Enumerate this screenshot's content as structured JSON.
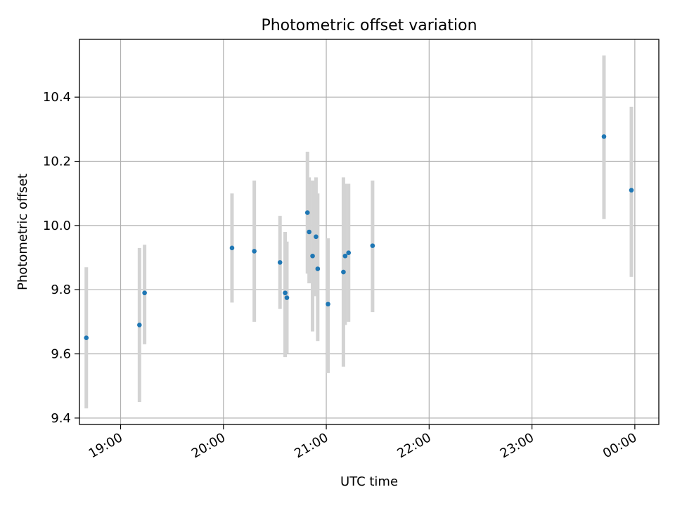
{
  "chart_data": {
    "type": "scatter",
    "title": "Photometric offset variation",
    "xlabel": "UTC time",
    "ylabel": "Photometric offset",
    "x_ticks": [
      "19:00",
      "20:00",
      "21:00",
      "22:00",
      "23:00",
      "00:00"
    ],
    "y_ticks": [
      "9.4",
      "9.6",
      "9.8",
      "10.0",
      "10.2",
      "10.4"
    ],
    "xlim": [
      "18:36",
      "00:14"
    ],
    "ylim": [
      9.38,
      10.58
    ],
    "grid": true,
    "colors": {
      "point": "#1f77b4",
      "errorbar": "#d3d3d3",
      "grid": "#b0b0b0"
    },
    "points": [
      {
        "x": "18:40",
        "y": 9.65,
        "ylo": 9.43,
        "yhi": 9.87
      },
      {
        "x": "19:11",
        "y": 9.69,
        "ylo": 9.45,
        "yhi": 9.93
      },
      {
        "x": "19:14",
        "y": 9.79,
        "ylo": 9.63,
        "yhi": 9.94
      },
      {
        "x": "20:05",
        "y": 9.93,
        "ylo": 9.76,
        "yhi": 10.1
      },
      {
        "x": "20:18",
        "y": 9.92,
        "ylo": 9.7,
        "yhi": 10.14
      },
      {
        "x": "20:33",
        "y": 9.885,
        "ylo": 9.74,
        "yhi": 10.03
      },
      {
        "x": "20:36",
        "y": 9.79,
        "ylo": 9.59,
        "yhi": 9.98
      },
      {
        "x": "20:37",
        "y": 9.775,
        "ylo": 9.6,
        "yhi": 9.95
      },
      {
        "x": "20:49",
        "y": 10.04,
        "ylo": 9.85,
        "yhi": 10.23
      },
      {
        "x": "20:50",
        "y": 9.98,
        "ylo": 9.82,
        "yhi": 10.15
      },
      {
        "x": "20:52",
        "y": 9.905,
        "ylo": 9.67,
        "yhi": 10.14
      },
      {
        "x": "20:54",
        "y": 9.965,
        "ylo": 9.78,
        "yhi": 10.15
      },
      {
        "x": "20:55",
        "y": 9.865,
        "ylo": 9.64,
        "yhi": 10.1
      },
      {
        "x": "21:01",
        "y": 9.755,
        "ylo": 9.54,
        "yhi": 9.96
      },
      {
        "x": "21:10",
        "y": 9.855,
        "ylo": 9.56,
        "yhi": 10.15
      },
      {
        "x": "21:11",
        "y": 9.905,
        "ylo": 9.69,
        "yhi": 10.13
      },
      {
        "x": "21:13",
        "y": 9.915,
        "ylo": 9.7,
        "yhi": 10.13
      },
      {
        "x": "21:27",
        "y": 9.937,
        "ylo": 9.73,
        "yhi": 10.14
      },
      {
        "x": "23:42",
        "y": 10.277,
        "ylo": 10.02,
        "yhi": 10.53
      },
      {
        "x": "23:58",
        "y": 10.11,
        "ylo": 9.84,
        "yhi": 10.37
      }
    ]
  }
}
